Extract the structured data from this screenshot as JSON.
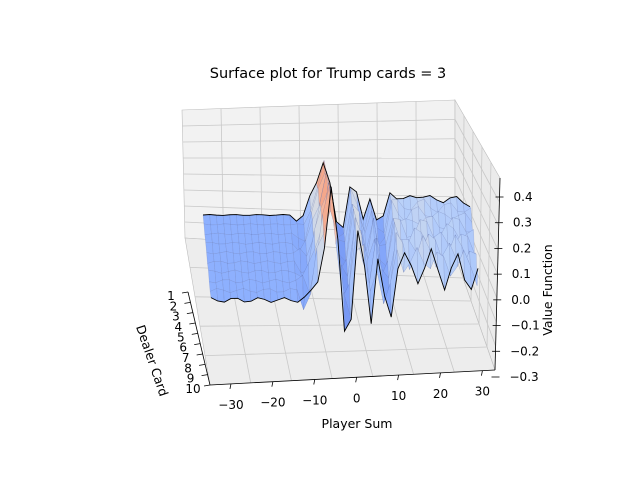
{
  "chart_data": {
    "type": "surface",
    "title": "Surface plot for Trump cards = 3",
    "xlabel": "Player Sum",
    "ylabel": "Dealer Card",
    "zlabel": "Value Function",
    "xlim": [
      -35,
      33
    ],
    "ylim": [
      1,
      10
    ],
    "zlim": [
      -0.3,
      0.45
    ],
    "xticks": [
      "−30",
      "−20",
      "−10",
      "0",
      "10",
      "20",
      "30"
    ],
    "xtick_values": [
      -30,
      -20,
      -10,
      0,
      10,
      20,
      30
    ],
    "yticks": [
      "1",
      "2",
      "3",
      "4",
      "5",
      "6",
      "7",
      "8",
      "9",
      "10"
    ],
    "zticks": [
      "0.4",
      "0.3",
      "0.2",
      "0.1",
      "0.0",
      "−0.1",
      "−0.2",
      "−0.3"
    ],
    "ztick_values": [
      0.4,
      0.3,
      0.2,
      0.1,
      0.0,
      -0.1,
      -0.2,
      -0.3
    ],
    "colormap": "coolwarm",
    "value_profile": {
      "x": [
        -35,
        -30,
        -20,
        -12,
        -10,
        -6,
        -4,
        -2,
        0,
        2,
        4,
        6,
        8,
        10,
        12,
        16,
        20,
        24,
        28,
        33
      ],
      "z": [
        0.0,
        0.0,
        0.0,
        0.0,
        -0.05,
        0.25,
        0.42,
        0.1,
        -0.22,
        0.22,
        0.15,
        -0.05,
        0.2,
        -0.2,
        0.18,
        0.1,
        0.15,
        0.1,
        0.12,
        0.08
      ]
    }
  }
}
